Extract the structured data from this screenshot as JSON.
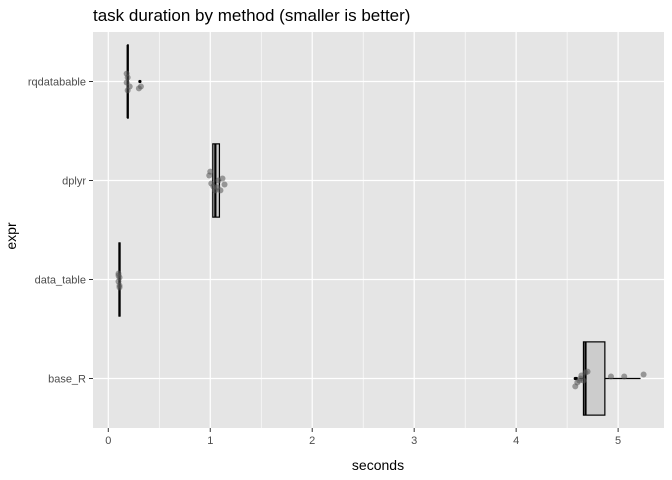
{
  "chart_data": {
    "type": "boxplot",
    "title": "task duration by method (smaller is better)",
    "xlabel": "seconds",
    "ylabel": "expr",
    "xlim": [
      -0.15,
      5.45
    ],
    "xticks": [
      0,
      1,
      2,
      3,
      4,
      5
    ],
    "categories": [
      "base_R",
      "data_table",
      "dplyr",
      "rqdatabable"
    ],
    "colors": {
      "panel_bg": "#e5e5e5",
      "grid": "#ffffff",
      "box_fill": "#cccccc",
      "box_stroke": "#000000",
      "point": "#555555"
    },
    "series": [
      {
        "category": "base_R",
        "min": 4.62,
        "q1": 4.66,
        "median": 4.68,
        "q3": 4.87,
        "max": 5.22,
        "outliers": [
          4.59,
          4.58
        ],
        "points": [
          [
            4.58,
            -0.08
          ],
          [
            4.6,
            -0.04
          ],
          [
            4.62,
            -0.02
          ],
          [
            4.63,
            0.0
          ],
          [
            4.64,
            0.03
          ],
          [
            4.66,
            -0.02
          ],
          [
            4.68,
            0.06
          ],
          [
            4.7,
            0.07
          ],
          [
            4.93,
            0.02
          ],
          [
            5.06,
            0.02
          ],
          [
            5.25,
            0.04
          ]
        ]
      },
      {
        "category": "data_table",
        "min": 0.1,
        "q1": 0.105,
        "median": 0.11,
        "q3": 0.115,
        "max": 0.12,
        "outliers": [],
        "points": [
          [
            0.1,
            0.04
          ],
          [
            0.11,
            0.02
          ],
          [
            0.1,
            -0.02
          ],
          [
            0.11,
            -0.06
          ],
          [
            0.1,
            0.06
          ],
          [
            0.11,
            -0.08
          ]
        ]
      },
      {
        "category": "dplyr",
        "min": 1.02,
        "q1": 1.025,
        "median": 1.05,
        "q3": 1.09,
        "max": 1.1,
        "outliers": [],
        "points": [
          [
            0.99,
            0.05
          ],
          [
            1.0,
            0.09
          ],
          [
            1.03,
            -0.06
          ],
          [
            1.05,
            -0.1
          ],
          [
            1.07,
            -0.07
          ],
          [
            1.1,
            -0.1
          ],
          [
            1.12,
            0.02
          ],
          [
            1.14,
            -0.04
          ],
          [
            1.01,
            -0.03
          ],
          [
            1.08,
            0.0
          ]
        ]
      },
      {
        "category": "rqdatabable",
        "min": 0.19,
        "q1": 0.19,
        "median": 0.19,
        "q3": 0.19,
        "max": 0.19,
        "outliers": [
          0.31
        ],
        "points": [
          [
            0.18,
            0.08
          ],
          [
            0.19,
            0.04
          ],
          [
            0.18,
            -0.01
          ],
          [
            0.21,
            -0.05
          ],
          [
            0.3,
            -0.07
          ],
          [
            0.32,
            -0.05
          ],
          [
            0.19,
            -0.09
          ]
        ]
      }
    ]
  }
}
